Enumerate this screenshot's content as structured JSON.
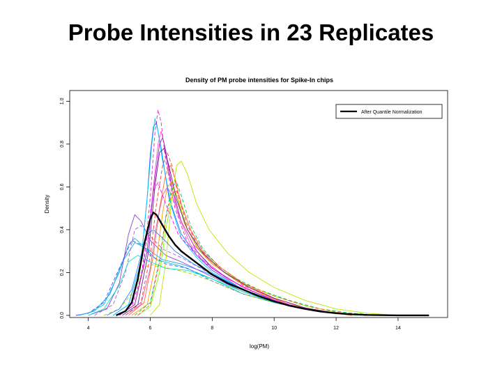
{
  "slide": {
    "title": "Probe Intensities in 23 Replicates"
  },
  "chart_data": {
    "type": "line",
    "title": "Density of PM probe intensities for Spike-In chips",
    "xlabel": "log(PM)",
    "ylabel": "Density",
    "xlim": [
      3.4,
      15.6
    ],
    "ylim": [
      -0.01,
      1.05
    ],
    "x_ticks": [
      "4",
      "6",
      "8",
      "10",
      "12",
      "14"
    ],
    "y_ticks": [
      "0.0",
      "0.2",
      "0.4",
      "0.6",
      "0.8",
      "1.0"
    ],
    "grid": false,
    "legend": {
      "position": "top-right",
      "entries": [
        "After Quantile Normalization"
      ]
    },
    "highlight_series": {
      "name": "After Quantile Normalization",
      "color": "#000000",
      "x": [
        4.9,
        5.2,
        5.4,
        5.6,
        5.8,
        6.0,
        6.1,
        6.2,
        6.4,
        6.6,
        6.8,
        7.0,
        7.5,
        8.0,
        8.5,
        9.0,
        9.5,
        10.0,
        10.5,
        11.0,
        11.5,
        12.0,
        12.5,
        13.0,
        14.0,
        15.0
      ],
      "y": [
        0.0,
        0.02,
        0.06,
        0.17,
        0.33,
        0.45,
        0.48,
        0.47,
        0.42,
        0.37,
        0.33,
        0.3,
        0.245,
        0.19,
        0.15,
        0.12,
        0.09,
        0.065,
        0.045,
        0.03,
        0.018,
        0.01,
        0.005,
        0.002,
        0.0,
        0.0
      ]
    },
    "replicates": [
      {
        "color": "#00bcd4",
        "x": [
          3.6,
          4.0,
          4.5,
          5.0,
          5.3,
          5.5,
          5.8,
          6.2,
          7.0,
          8.0,
          9.0,
          10.0,
          11.0,
          12.0,
          13.0,
          14.0
        ],
        "y": [
          0.0,
          0.01,
          0.05,
          0.2,
          0.33,
          0.36,
          0.32,
          0.26,
          0.23,
          0.17,
          0.1,
          0.06,
          0.03,
          0.01,
          0.003,
          0.0
        ]
      },
      {
        "color": "#3f51ff",
        "x": [
          3.6,
          4.0,
          4.5,
          5.0,
          5.4,
          5.7,
          6.0,
          6.5,
          7.2,
          8.0,
          9.0,
          10.0,
          11.0,
          12.0,
          13.0
        ],
        "y": [
          0.0,
          0.01,
          0.06,
          0.22,
          0.35,
          0.33,
          0.28,
          0.24,
          0.22,
          0.16,
          0.1,
          0.06,
          0.03,
          0.01,
          0.0
        ]
      },
      {
        "color": "#1fa0ff",
        "x": [
          3.7,
          4.2,
          4.7,
          5.1,
          5.5,
          5.9,
          6.4,
          7.0,
          7.8,
          8.6,
          9.5,
          10.5,
          11.5,
          12.5
        ],
        "y": [
          0.0,
          0.02,
          0.1,
          0.25,
          0.34,
          0.31,
          0.26,
          0.24,
          0.2,
          0.15,
          0.09,
          0.05,
          0.02,
          0.0
        ]
      },
      {
        "color": "#8b3fd9",
        "x": [
          4.0,
          4.6,
          5.0,
          5.3,
          5.5,
          5.7,
          6.0,
          6.5,
          7.0,
          8.0,
          9.0,
          10.0,
          11.0,
          12.0,
          13.0
        ],
        "y": [
          0.0,
          0.03,
          0.15,
          0.38,
          0.47,
          0.44,
          0.35,
          0.28,
          0.25,
          0.18,
          0.11,
          0.06,
          0.03,
          0.01,
          0.0
        ]
      },
      {
        "color": "#a05ad0",
        "x": [
          4.2,
          4.8,
          5.2,
          5.5,
          5.7,
          6.0,
          6.4,
          7.0,
          8.0,
          9.0,
          10.0,
          11.0,
          12.0,
          13.0
        ],
        "y": [
          0.0,
          0.05,
          0.2,
          0.4,
          0.42,
          0.37,
          0.31,
          0.27,
          0.19,
          0.12,
          0.07,
          0.03,
          0.01,
          0.0
        ]
      },
      {
        "color": "#2f5fff",
        "x": [
          4.8,
          5.3,
          5.7,
          5.9,
          6.0,
          6.1,
          6.2,
          6.35,
          6.6,
          7.0,
          7.5,
          8.0,
          9.0,
          10.0,
          11.0,
          12.0,
          13.0
        ],
        "y": [
          0.0,
          0.05,
          0.25,
          0.55,
          0.75,
          0.88,
          0.9,
          0.78,
          0.55,
          0.38,
          0.28,
          0.21,
          0.12,
          0.07,
          0.03,
          0.01,
          0.0
        ]
      },
      {
        "color": "#00c8ff",
        "x": [
          4.8,
          5.3,
          5.7,
          5.9,
          6.05,
          6.15,
          6.25,
          6.4,
          6.7,
          7.0,
          7.5,
          8.0,
          9.0,
          10.0,
          11.0,
          12.0,
          13.0
        ],
        "y": [
          0.0,
          0.05,
          0.25,
          0.55,
          0.8,
          0.92,
          0.86,
          0.72,
          0.5,
          0.36,
          0.27,
          0.2,
          0.12,
          0.07,
          0.03,
          0.01,
          0.0
        ]
      },
      {
        "color": "#d02ec8",
        "x": [
          5.0,
          5.5,
          5.8,
          6.0,
          6.15,
          6.25,
          6.35,
          6.5,
          6.8,
          7.2,
          7.8,
          8.5,
          9.5,
          10.5,
          11.5,
          12.5,
          13.5
        ],
        "y": [
          0.0,
          0.05,
          0.25,
          0.55,
          0.85,
          0.96,
          0.9,
          0.72,
          0.5,
          0.34,
          0.24,
          0.17,
          0.1,
          0.05,
          0.02,
          0.005,
          0.0
        ]
      },
      {
        "color": "#ff4fd8",
        "x": [
          5.0,
          5.5,
          5.9,
          6.1,
          6.25,
          6.35,
          6.45,
          6.6,
          6.9,
          7.3,
          7.9,
          8.5,
          9.5,
          10.5,
          11.5,
          12.5
        ],
        "y": [
          0.0,
          0.05,
          0.3,
          0.6,
          0.8,
          0.86,
          0.8,
          0.66,
          0.47,
          0.33,
          0.24,
          0.17,
          0.1,
          0.05,
          0.02,
          0.0
        ]
      },
      {
        "color": "#9b27b0",
        "x": [
          5.0,
          5.5,
          5.9,
          6.1,
          6.3,
          6.4,
          6.5,
          6.7,
          7.0,
          7.5,
          8.0,
          9.0,
          10.0,
          11.0,
          12.0,
          13.0
        ],
        "y": [
          0.0,
          0.05,
          0.3,
          0.58,
          0.8,
          0.83,
          0.77,
          0.6,
          0.44,
          0.3,
          0.22,
          0.13,
          0.07,
          0.03,
          0.01,
          0.0
        ]
      },
      {
        "color": "#ff3030",
        "x": [
          5.2,
          5.7,
          6.0,
          6.2,
          6.4,
          6.55,
          6.7,
          6.9,
          7.2,
          7.6,
          8.2,
          9.0,
          10.0,
          11.0,
          12.0,
          13.0
        ],
        "y": [
          0.0,
          0.06,
          0.28,
          0.52,
          0.7,
          0.76,
          0.7,
          0.56,
          0.42,
          0.31,
          0.22,
          0.14,
          0.08,
          0.035,
          0.01,
          0.0
        ]
      },
      {
        "color": "#ff6a3d",
        "x": [
          5.3,
          5.8,
          6.1,
          6.3,
          6.5,
          6.65,
          6.8,
          7.0,
          7.3,
          7.7,
          8.3,
          9.0,
          10.0,
          11.0,
          12.0,
          13.0
        ],
        "y": [
          0.0,
          0.06,
          0.28,
          0.5,
          0.66,
          0.7,
          0.64,
          0.52,
          0.4,
          0.3,
          0.22,
          0.15,
          0.08,
          0.035,
          0.01,
          0.0
        ]
      },
      {
        "color": "#e05ab4",
        "x": [
          5.2,
          5.7,
          6.0,
          6.2,
          6.4,
          6.55,
          6.7,
          7.0,
          7.4,
          8.0,
          8.8,
          9.6,
          10.5,
          11.5,
          12.5
        ],
        "y": [
          0.0,
          0.05,
          0.22,
          0.42,
          0.56,
          0.6,
          0.56,
          0.44,
          0.33,
          0.24,
          0.16,
          0.1,
          0.05,
          0.02,
          0.0
        ]
      },
      {
        "color": "#00c853",
        "x": [
          5.5,
          6.0,
          6.3,
          6.5,
          6.7,
          6.85,
          7.0,
          7.3,
          7.7,
          8.2,
          8.8,
          9.5,
          10.5,
          11.5,
          12.5,
          13.5
        ],
        "y": [
          0.0,
          0.06,
          0.26,
          0.46,
          0.6,
          0.62,
          0.56,
          0.42,
          0.31,
          0.23,
          0.17,
          0.12,
          0.07,
          0.03,
          0.01,
          0.0
        ]
      },
      {
        "color": "#76ff03",
        "x": [
          5.6,
          6.0,
          6.3,
          6.5,
          6.7,
          6.8,
          6.95,
          7.2,
          7.6,
          8.2,
          9.0,
          10.0,
          11.0,
          12.0,
          13.0
        ],
        "y": [
          0.0,
          0.04,
          0.2,
          0.4,
          0.55,
          0.58,
          0.52,
          0.4,
          0.3,
          0.22,
          0.15,
          0.09,
          0.045,
          0.015,
          0.0
        ]
      },
      {
        "color": "#c6e000",
        "x": [
          6.0,
          6.3,
          6.5,
          6.7,
          6.85,
          7.0,
          7.2,
          7.5,
          7.9,
          8.5,
          9.2,
          10.0,
          11.0,
          12.0,
          13.0,
          14.0
        ],
        "y": [
          0.0,
          0.05,
          0.25,
          0.55,
          0.7,
          0.72,
          0.66,
          0.52,
          0.4,
          0.29,
          0.2,
          0.13,
          0.07,
          0.03,
          0.01,
          0.0
        ]
      },
      {
        "color": "#9ccc00",
        "x": [
          4.5,
          5.0,
          5.5,
          5.8,
          6.0,
          6.2,
          6.6,
          7.2,
          8.0,
          9.0,
          10.0,
          11.0,
          12.0,
          13.0
        ],
        "y": [
          0.0,
          0.03,
          0.12,
          0.22,
          0.24,
          0.23,
          0.22,
          0.2,
          0.16,
          0.1,
          0.06,
          0.03,
          0.01,
          0.0
        ]
      },
      {
        "color": "#ff9800",
        "x": [
          5.4,
          5.9,
          6.2,
          6.4,
          6.55,
          6.7,
          6.85,
          7.1,
          7.5,
          8.0,
          8.8,
          9.6,
          10.5,
          11.5,
          12.5
        ],
        "y": [
          0.0,
          0.05,
          0.26,
          0.48,
          0.6,
          0.62,
          0.56,
          0.43,
          0.32,
          0.24,
          0.16,
          0.1,
          0.05,
          0.02,
          0.0
        ]
      },
      {
        "color": "#2e7dff",
        "x": [
          4.6,
          5.0,
          5.4,
          5.7,
          5.9,
          6.1,
          6.4,
          6.8,
          7.4,
          8.2,
          9.0,
          10.0,
          11.0,
          12.0,
          13.0
        ],
        "y": [
          0.0,
          0.03,
          0.12,
          0.28,
          0.38,
          0.4,
          0.36,
          0.3,
          0.24,
          0.18,
          0.12,
          0.06,
          0.03,
          0.01,
          0.0
        ]
      },
      {
        "color": "#ff00ff",
        "x": [
          5.0,
          5.4,
          5.7,
          5.95,
          6.1,
          6.25,
          6.5,
          6.9,
          7.5,
          8.2,
          9.0,
          10.0,
          11.0,
          12.0,
          13.0
        ],
        "y": [
          0.0,
          0.04,
          0.18,
          0.42,
          0.58,
          0.62,
          0.52,
          0.38,
          0.28,
          0.2,
          0.13,
          0.07,
          0.03,
          0.01,
          0.0
        ]
      },
      {
        "color": "#00e5c8",
        "x": [
          4.0,
          4.5,
          5.0,
          5.3,
          5.6,
          6.0,
          6.5,
          7.2,
          8.0,
          9.0,
          10.0,
          11.0,
          12.0,
          13.0
        ],
        "y": [
          0.0,
          0.03,
          0.14,
          0.25,
          0.28,
          0.25,
          0.22,
          0.21,
          0.17,
          0.11,
          0.06,
          0.03,
          0.01,
          0.0
        ]
      },
      {
        "color": "#6a1b9a",
        "x": [
          5.1,
          5.6,
          5.95,
          6.15,
          6.3,
          6.45,
          6.6,
          6.85,
          7.2,
          7.7,
          8.4,
          9.2,
          10.0,
          11.0,
          12.0,
          13.0
        ],
        "y": [
          0.0,
          0.05,
          0.3,
          0.6,
          0.76,
          0.78,
          0.7,
          0.54,
          0.4,
          0.29,
          0.2,
          0.13,
          0.08,
          0.035,
          0.01,
          0.0
        ]
      },
      {
        "color": "#ff5722",
        "x": [
          5.6,
          6.0,
          6.3,
          6.5,
          6.7,
          6.85,
          7.0,
          7.3,
          7.7,
          8.3,
          9.0,
          10.0,
          11.0,
          12.0,
          13.0
        ],
        "y": [
          0.0,
          0.05,
          0.25,
          0.45,
          0.57,
          0.58,
          0.52,
          0.4,
          0.3,
          0.22,
          0.15,
          0.09,
          0.045,
          0.015,
          0.0
        ]
      }
    ]
  }
}
